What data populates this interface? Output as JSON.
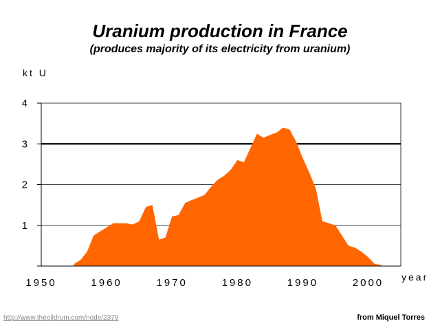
{
  "chart_data": {
    "type": "area",
    "title": "Uranium production in France",
    "subtitle": "(produces majority of its electricity from uranium)",
    "ylabel": "kt U",
    "xlabel": "year",
    "xlim": [
      1950,
      2005
    ],
    "ylim": [
      0,
      4
    ],
    "xticks": [
      "1950",
      "1960",
      "1970",
      "1980",
      "1990",
      "2000"
    ],
    "yticks": [
      "4",
      "3",
      "2",
      "1"
    ],
    "ytick_values": [
      4,
      3,
      2,
      1
    ],
    "grid": true,
    "highlight_gridline": 3,
    "colors": {
      "area": "#ff6600",
      "grid": "#000000",
      "highlight": "#000000"
    },
    "x": [
      1955,
      1956,
      1957,
      1958,
      1959,
      1960,
      1961,
      1962,
      1963,
      1964,
      1965,
      1966,
      1967,
      1968,
      1969,
      1970,
      1971,
      1972,
      1973,
      1974,
      1975,
      1976,
      1977,
      1978,
      1979,
      1980,
      1981,
      1982,
      1983,
      1984,
      1985,
      1986,
      1987,
      1988,
      1989,
      1990,
      1991,
      1992,
      1993,
      1994,
      1995,
      1996,
      1997,
      1998,
      1999,
      2000,
      2001,
      2002
    ],
    "values": [
      0.05,
      0.15,
      0.35,
      0.75,
      0.85,
      0.95,
      1.05,
      1.05,
      1.05,
      1.02,
      1.1,
      1.45,
      1.5,
      0.65,
      0.7,
      1.22,
      1.25,
      1.55,
      1.62,
      1.68,
      1.75,
      1.95,
      2.12,
      2.22,
      2.37,
      2.6,
      2.55,
      2.9,
      3.25,
      3.15,
      3.22,
      3.28,
      3.4,
      3.35,
      3.05,
      2.65,
      2.3,
      1.9,
      1.1,
      1.05,
      1.0,
      0.75,
      0.5,
      0.45,
      0.35,
      0.22,
      0.05,
      0.03
    ]
  },
  "credits": {
    "url": "http://www.theoildrum.com/node/2379",
    "author": "from Miquel Torres"
  }
}
